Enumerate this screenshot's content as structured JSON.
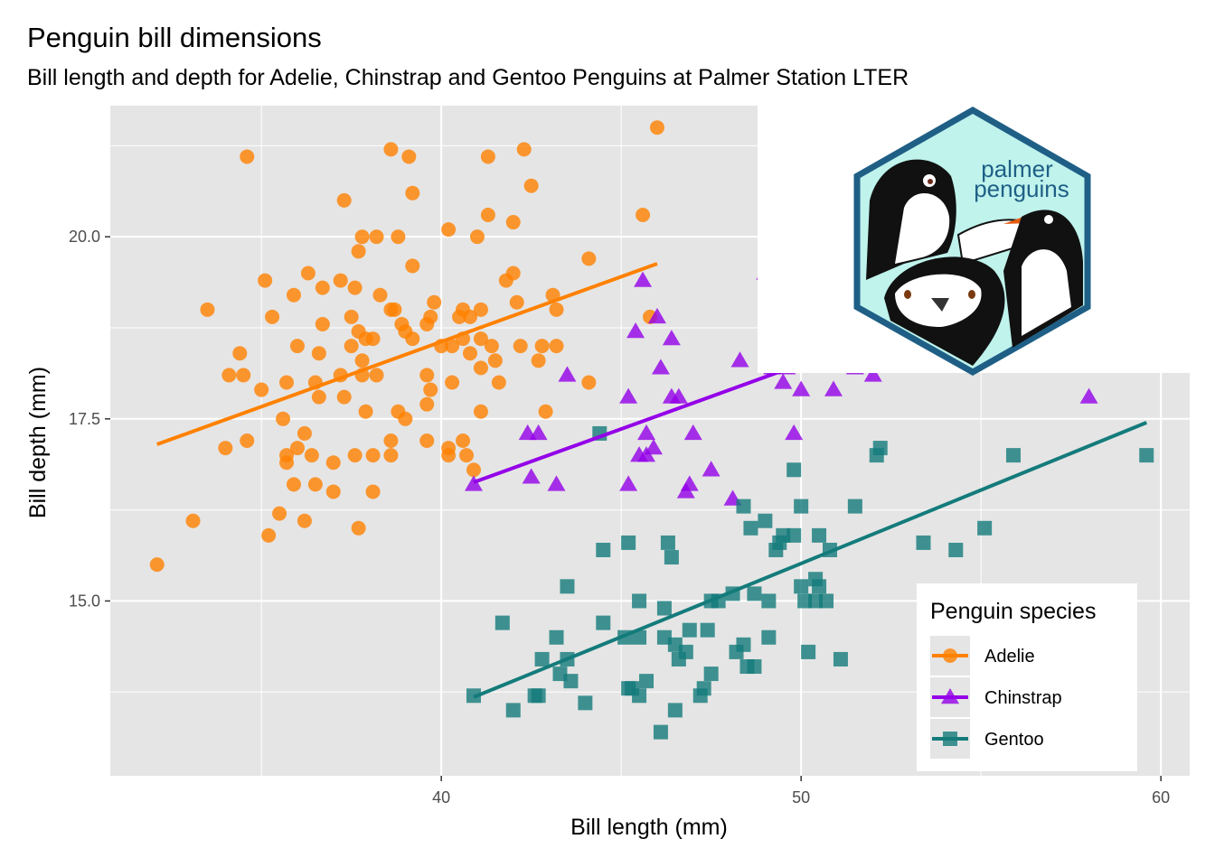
{
  "title": "Penguin bill dimensions",
  "subtitle": "Bill length and depth for Adelie, Chinstrap and Gentoo Penguins at Palmer Station LTER",
  "logo": {
    "line1": "palmer",
    "line2": "penguins"
  },
  "colors": {
    "Adelie": "#FF8100",
    "Chinstrap": "#9400E8",
    "Gentoo": "#147B7B",
    "panel": "#E5E5E5",
    "grid": "#FFFFFF"
  },
  "chart_data": {
    "type": "scatter",
    "xlabel": "Bill length (mm)",
    "ylabel": "Bill depth (mm)",
    "xlim": [
      30.8,
      60.8
    ],
    "ylim": [
      12.6,
      21.8
    ],
    "xticks": [
      40,
      50,
      60
    ],
    "yticks": [
      15.0,
      17.5,
      20.0
    ],
    "xtick_labels": [
      "40",
      "50",
      "60"
    ],
    "ytick_labels": [
      "15.0",
      "17.5",
      "20.0"
    ],
    "grid": true,
    "legend": {
      "title": "Penguin species",
      "position": "bottom-right",
      "entries": [
        "Adelie",
        "Chinstrap",
        "Gentoo"
      ]
    },
    "series": [
      {
        "name": "Adelie",
        "marker": "circle",
        "points": [
          [
            32.1,
            15.5
          ],
          [
            33.1,
            16.1
          ],
          [
            33.5,
            19.0
          ],
          [
            34.0,
            17.1
          ],
          [
            34.1,
            18.1
          ],
          [
            34.4,
            18.4
          ],
          [
            34.5,
            18.1
          ],
          [
            34.6,
            21.1
          ],
          [
            34.6,
            17.2
          ],
          [
            35.0,
            17.9
          ],
          [
            35.1,
            19.4
          ],
          [
            35.2,
            15.9
          ],
          [
            35.3,
            18.9
          ],
          [
            35.5,
            16.2
          ],
          [
            35.6,
            17.5
          ],
          [
            35.7,
            18.0
          ],
          [
            35.7,
            17.0
          ],
          [
            35.7,
            16.9
          ],
          [
            35.9,
            16.6
          ],
          [
            35.9,
            19.2
          ],
          [
            36.0,
            18.5
          ],
          [
            36.0,
            17.1
          ],
          [
            36.2,
            16.1
          ],
          [
            36.2,
            17.3
          ],
          [
            36.3,
            19.5
          ],
          [
            36.4,
            17.0
          ],
          [
            36.5,
            18.0
          ],
          [
            36.5,
            16.6
          ],
          [
            36.6,
            17.8
          ],
          [
            36.7,
            18.8
          ],
          [
            36.7,
            19.3
          ],
          [
            36.6,
            18.4
          ],
          [
            37.0,
            16.9
          ],
          [
            37.0,
            16.5
          ],
          [
            37.2,
            18.1
          ],
          [
            37.2,
            19.4
          ],
          [
            37.3,
            20.5
          ],
          [
            37.3,
            17.8
          ],
          [
            37.5,
            18.9
          ],
          [
            37.5,
            18.5
          ],
          [
            37.6,
            19.3
          ],
          [
            37.6,
            17.0
          ],
          [
            37.7,
            19.8
          ],
          [
            37.7,
            18.7
          ],
          [
            37.7,
            16.0
          ],
          [
            37.8,
            20.0
          ],
          [
            37.8,
            18.3
          ],
          [
            37.8,
            18.1
          ],
          [
            37.9,
            18.6
          ],
          [
            37.9,
            17.6
          ],
          [
            38.1,
            18.6
          ],
          [
            38.1,
            17.0
          ],
          [
            38.1,
            16.5
          ],
          [
            38.2,
            20.0
          ],
          [
            38.2,
            18.1
          ],
          [
            38.3,
            19.2
          ],
          [
            38.6,
            21.2
          ],
          [
            38.6,
            19.0
          ],
          [
            38.6,
            17.2
          ],
          [
            38.6,
            17.0
          ],
          [
            38.7,
            19.0
          ],
          [
            38.8,
            20.0
          ],
          [
            38.8,
            17.6
          ],
          [
            38.9,
            18.8
          ],
          [
            39.0,
            18.7
          ],
          [
            39.0,
            17.5
          ],
          [
            39.1,
            21.1
          ],
          [
            39.2,
            19.6
          ],
          [
            39.2,
            18.6
          ],
          [
            39.2,
            20.6
          ],
          [
            39.6,
            18.8
          ],
          [
            39.6,
            18.1
          ],
          [
            39.6,
            17.7
          ],
          [
            39.6,
            17.2
          ],
          [
            39.7,
            18.9
          ],
          [
            39.7,
            17.9
          ],
          [
            39.8,
            19.1
          ],
          [
            40.0,
            18.5
          ],
          [
            40.2,
            20.1
          ],
          [
            40.2,
            17.1
          ],
          [
            40.2,
            17.0
          ],
          [
            40.3,
            18.5
          ],
          [
            40.3,
            18.0
          ],
          [
            40.5,
            18.9
          ],
          [
            40.6,
            19.0
          ],
          [
            40.6,
            18.6
          ],
          [
            40.6,
            17.2
          ],
          [
            40.7,
            17.0
          ],
          [
            40.8,
            18.4
          ],
          [
            40.8,
            18.9
          ],
          [
            40.9,
            16.8
          ],
          [
            41.0,
            20.0
          ],
          [
            41.1,
            19.0
          ],
          [
            41.1,
            18.6
          ],
          [
            41.1,
            18.2
          ],
          [
            41.1,
            17.6
          ],
          [
            41.3,
            20.3
          ],
          [
            41.3,
            21.1
          ],
          [
            41.4,
            18.5
          ],
          [
            41.5,
            18.3
          ],
          [
            41.6,
            18.0
          ],
          [
            41.8,
            19.4
          ],
          [
            42.0,
            19.5
          ],
          [
            42.0,
            20.2
          ],
          [
            42.1,
            19.1
          ],
          [
            42.2,
            18.5
          ],
          [
            42.3,
            21.2
          ],
          [
            42.5,
            20.7
          ],
          [
            42.7,
            18.3
          ],
          [
            42.8,
            18.5
          ],
          [
            42.9,
            17.6
          ],
          [
            43.1,
            19.2
          ],
          [
            43.2,
            18.5
          ],
          [
            43.2,
            19.0
          ],
          [
            44.1,
            19.7
          ],
          [
            44.1,
            18.0
          ],
          [
            45.6,
            20.3
          ],
          [
            45.8,
            18.9
          ],
          [
            46.0,
            21.5
          ]
        ]
      },
      {
        "name": "Chinstrap",
        "marker": "triangle",
        "points": [
          [
            40.9,
            16.6
          ],
          [
            42.4,
            17.3
          ],
          [
            42.5,
            16.7
          ],
          [
            42.7,
            17.3
          ],
          [
            43.2,
            16.6
          ],
          [
            43.5,
            18.1
          ],
          [
            45.2,
            17.8
          ],
          [
            45.2,
            16.6
          ],
          [
            45.4,
            18.7
          ],
          [
            45.5,
            17.0
          ],
          [
            45.6,
            19.4
          ],
          [
            45.7,
            17.3
          ],
          [
            45.7,
            17.0
          ],
          [
            45.9,
            17.1
          ],
          [
            46.0,
            18.9
          ],
          [
            46.1,
            18.2
          ],
          [
            46.4,
            17.8
          ],
          [
            46.4,
            18.6
          ],
          [
            46.6,
            17.8
          ],
          [
            46.8,
            16.5
          ],
          [
            46.9,
            16.6
          ],
          [
            47.0,
            17.3
          ],
          [
            47.5,
            16.8
          ],
          [
            48.1,
            16.4
          ],
          [
            48.3,
            18.3
          ],
          [
            49.0,
            19.5
          ],
          [
            49.2,
            18.2
          ],
          [
            49.5,
            18.0
          ],
          [
            49.6,
            18.2
          ],
          [
            49.8,
            17.3
          ],
          [
            50.0,
            17.9
          ],
          [
            50.9,
            17.9
          ],
          [
            51.5,
            18.2
          ],
          [
            52.0,
            18.1
          ],
          [
            58.0,
            17.8
          ]
        ]
      },
      {
        "name": "Gentoo",
        "marker": "square",
        "points": [
          [
            40.9,
            13.7
          ],
          [
            41.7,
            14.7
          ],
          [
            42.0,
            13.5
          ],
          [
            42.6,
            13.7
          ],
          [
            42.7,
            13.7
          ],
          [
            42.8,
            14.2
          ],
          [
            43.2,
            14.5
          ],
          [
            43.3,
            14.0
          ],
          [
            43.5,
            14.2
          ],
          [
            43.5,
            15.2
          ],
          [
            43.6,
            13.9
          ],
          [
            44.0,
            13.6
          ],
          [
            44.4,
            17.3
          ],
          [
            44.5,
            14.7
          ],
          [
            44.5,
            15.7
          ],
          [
            45.1,
            14.5
          ],
          [
            45.2,
            13.8
          ],
          [
            45.2,
            15.8
          ],
          [
            45.3,
            13.8
          ],
          [
            45.5,
            13.7
          ],
          [
            45.5,
            14.5
          ],
          [
            45.5,
            15.0
          ],
          [
            45.7,
            13.9
          ],
          [
            46.1,
            13.2
          ],
          [
            46.2,
            14.5
          ],
          [
            46.2,
            14.9
          ],
          [
            46.3,
            15.8
          ],
          [
            46.4,
            15.6
          ],
          [
            46.5,
            13.5
          ],
          [
            46.5,
            14.4
          ],
          [
            46.6,
            14.2
          ],
          [
            46.8,
            14.3
          ],
          [
            46.9,
            14.6
          ],
          [
            47.2,
            13.7
          ],
          [
            47.3,
            13.8
          ],
          [
            47.4,
            14.6
          ],
          [
            47.5,
            14.0
          ],
          [
            47.5,
            15.0
          ],
          [
            47.7,
            15.0
          ],
          [
            48.1,
            15.1
          ],
          [
            48.2,
            14.3
          ],
          [
            48.4,
            14.4
          ],
          [
            48.4,
            16.3
          ],
          [
            48.5,
            14.1
          ],
          [
            48.6,
            16.0
          ],
          [
            48.7,
            14.1
          ],
          [
            48.7,
            15.1
          ],
          [
            49.0,
            16.1
          ],
          [
            49.1,
            14.5
          ],
          [
            49.1,
            15.0
          ],
          [
            49.3,
            15.7
          ],
          [
            49.4,
            15.8
          ],
          [
            49.5,
            15.9
          ],
          [
            49.8,
            15.9
          ],
          [
            49.8,
            16.8
          ],
          [
            50.0,
            15.2
          ],
          [
            50.0,
            16.3
          ],
          [
            50.1,
            15.0
          ],
          [
            50.2,
            14.3
          ],
          [
            50.4,
            15.0
          ],
          [
            50.4,
            15.3
          ],
          [
            50.5,
            15.2
          ],
          [
            50.5,
            15.9
          ],
          [
            50.7,
            15.0
          ],
          [
            50.8,
            15.7
          ],
          [
            51.1,
            14.2
          ],
          [
            51.5,
            16.3
          ],
          [
            52.1,
            17.0
          ],
          [
            52.2,
            17.1
          ],
          [
            53.4,
            15.8
          ],
          [
            54.3,
            15.7
          ],
          [
            55.1,
            16.0
          ],
          [
            55.9,
            17.0
          ],
          [
            59.6,
            17.0
          ]
        ]
      }
    ],
    "trend_lines": [
      {
        "name": "Adelie",
        "x": [
          32.1,
          46.0
        ],
        "y": [
          17.15,
          19.63
        ]
      },
      {
        "name": "Chinstrap",
        "x": [
          40.9,
          58.0
        ],
        "y": [
          16.63,
          19.68
        ]
      },
      {
        "name": "Gentoo",
        "x": [
          40.9,
          59.6
        ],
        "y": [
          13.68,
          17.45
        ]
      }
    ]
  }
}
